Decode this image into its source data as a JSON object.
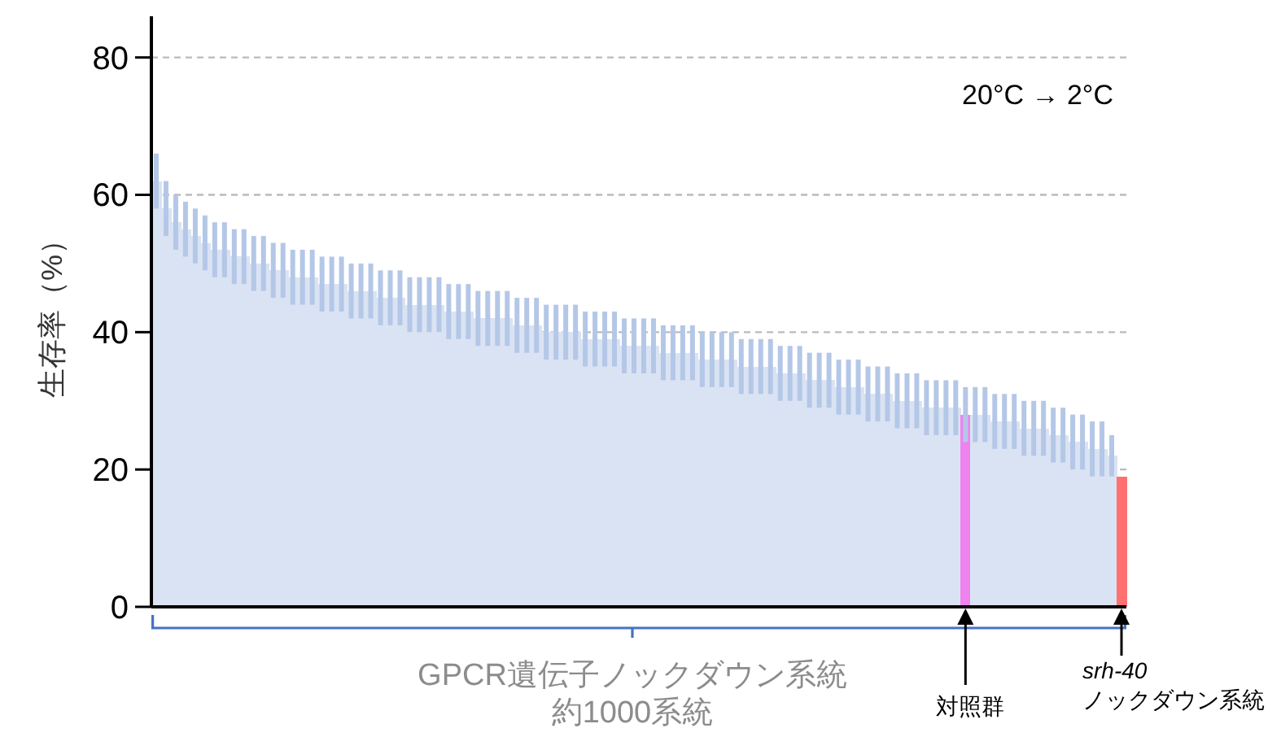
{
  "chart_data": {
    "type": "bar",
    "ylabel": "生存率（%）",
    "categories": [
      null,
      null,
      null,
      null,
      null,
      null,
      null,
      null,
      null,
      null,
      null,
      null,
      null,
      null,
      null,
      null,
      null,
      null,
      null,
      null,
      null,
      null,
      null,
      null,
      null,
      null,
      null,
      null,
      null,
      null,
      null,
      null,
      null,
      null,
      null,
      null,
      null,
      null,
      null,
      null,
      null,
      null,
      null,
      null,
      null,
      null,
      null,
      null,
      null,
      null,
      null,
      null,
      null,
      null,
      null,
      null,
      null,
      null,
      null,
      null,
      null,
      null,
      null,
      null,
      null,
      null,
      null,
      null,
      null,
      null,
      null,
      null,
      null,
      null,
      null,
      null,
      null,
      null,
      null,
      null,
      null,
      null,
      null,
      null,
      null,
      null,
      null,
      null,
      null,
      null,
      null,
      null,
      null,
      null,
      null,
      null,
      null,
      null,
      null,
      null
    ],
    "values": [
      62,
      58,
      56,
      55,
      54,
      53,
      52,
      52,
      51,
      51,
      50,
      50,
      49,
      49,
      48,
      48,
      48,
      47,
      47,
      47,
      46,
      46,
      46,
      45,
      45,
      45,
      44,
      44,
      44,
      44,
      43,
      43,
      43,
      42,
      42,
      42,
      42,
      41,
      41,
      41,
      40,
      40,
      40,
      40,
      39,
      39,
      39,
      39,
      38,
      38,
      38,
      38,
      37,
      37,
      37,
      37,
      36,
      36,
      36,
      36,
      35,
      35,
      35,
      35,
      34,
      34,
      34,
      33,
      33,
      33,
      32,
      32,
      32,
      31,
      31,
      31,
      30,
      30,
      30,
      29,
      29,
      29,
      29,
      28,
      28,
      28,
      27,
      27,
      27,
      26,
      26,
      26,
      25,
      25,
      24,
      24,
      23,
      23,
      22,
      19
    ],
    "errors": [
      4,
      4,
      4,
      4,
      4,
      4,
      4,
      4,
      4,
      4,
      4,
      4,
      4,
      4,
      4,
      4,
      4,
      4,
      4,
      4,
      4,
      4,
      4,
      4,
      4,
      4,
      4,
      4,
      4,
      4,
      4,
      4,
      4,
      4,
      4,
      4,
      4,
      4,
      4,
      4,
      4,
      4,
      4,
      4,
      4,
      4,
      4,
      4,
      4,
      4,
      4,
      4,
      4,
      4,
      4,
      4,
      4,
      4,
      4,
      4,
      4,
      4,
      4,
      4,
      4,
      4,
      4,
      4,
      4,
      4,
      4,
      4,
      4,
      4,
      4,
      4,
      4,
      4,
      4,
      4,
      4,
      4,
      4,
      4,
      4,
      4,
      4,
      4,
      4,
      4,
      4,
      4,
      4,
      4,
      4,
      4,
      4,
      4,
      3,
      null
    ],
    "colors": [
      "#dae3f3",
      "#dae3f3",
      "#dae3f3",
      "#dae3f3",
      "#dae3f3",
      "#dae3f3",
      "#dae3f3",
      "#dae3f3",
      "#dae3f3",
      "#dae3f3",
      "#dae3f3",
      "#dae3f3",
      "#dae3f3",
      "#dae3f3",
      "#dae3f3",
      "#dae3f3",
      "#dae3f3",
      "#dae3f3",
      "#dae3f3",
      "#dae3f3",
      "#dae3f3",
      "#dae3f3",
      "#dae3f3",
      "#dae3f3",
      "#dae3f3",
      "#dae3f3",
      "#dae3f3",
      "#dae3f3",
      "#dae3f3",
      "#dae3f3",
      "#dae3f3",
      "#dae3f3",
      "#dae3f3",
      "#dae3f3",
      "#dae3f3",
      "#dae3f3",
      "#dae3f3",
      "#dae3f3",
      "#dae3f3",
      "#dae3f3",
      "#dae3f3",
      "#dae3f3",
      "#dae3f3",
      "#dae3f3",
      "#dae3f3",
      "#dae3f3",
      "#dae3f3",
      "#dae3f3",
      "#dae3f3",
      "#dae3f3",
      "#dae3f3",
      "#dae3f3",
      "#dae3f3",
      "#dae3f3",
      "#dae3f3",
      "#dae3f3",
      "#dae3f3",
      "#dae3f3",
      "#dae3f3",
      "#dae3f3",
      "#dae3f3",
      "#dae3f3",
      "#dae3f3",
      "#dae3f3",
      "#dae3f3",
      "#dae3f3",
      "#dae3f3",
      "#dae3f3",
      "#dae3f3",
      "#dae3f3",
      "#dae3f3",
      "#dae3f3",
      "#dae3f3",
      "#dae3f3",
      "#dae3f3",
      "#dae3f3",
      "#dae3f3",
      "#dae3f3",
      "#dae3f3",
      "#dae3f3",
      "#dae3f3",
      "#dae3f3",
      "#dae3f3",
      "#ee82ee",
      "#dae3f3",
      "#dae3f3",
      "#dae3f3",
      "#dae3f3",
      "#dae3f3",
      "#dae3f3",
      "#dae3f3",
      "#dae3f3",
      "#dae3f3",
      "#dae3f3",
      "#dae3f3",
      "#dae3f3",
      "#dae3f3",
      "#dae3f3",
      "#dae3f3",
      "#ff7070"
    ],
    "ylim": [
      0,
      86
    ],
    "yticks": [
      0,
      20,
      40,
      60,
      80
    ],
    "grid": "y",
    "annotations": [
      "20°C → 2°C",
      "GPCR遺伝子ノックダウン系統",
      "約1000系統",
      "対照群",
      "srh-40\nノックダウン系統"
    ]
  }
}
